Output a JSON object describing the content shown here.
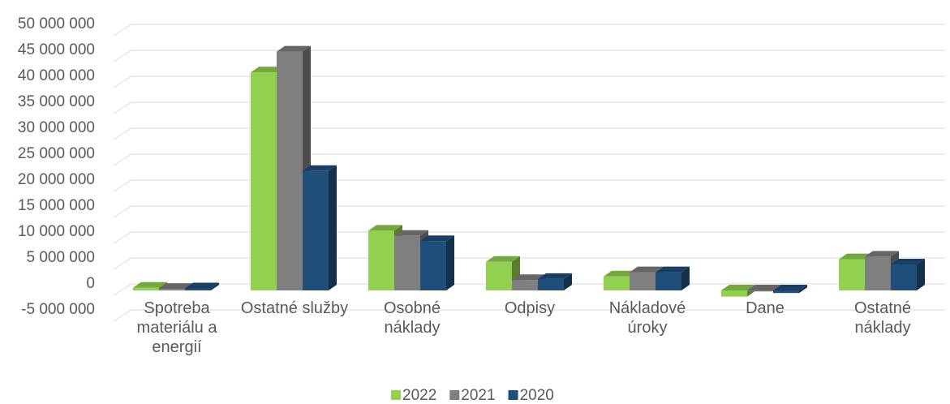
{
  "chart_data": {
    "type": "bar3d",
    "categories": [
      "Spotreba materiálu a energií",
      "Ostatné služby",
      "Osobné náklady",
      "Odpisy",
      "Nákladové úroky",
      "Dane",
      "Ostatné náklady"
    ],
    "series": [
      {
        "name": "2022",
        "color": "#92d050",
        "values": [
          500000,
          42000000,
          11500000,
          5500000,
          2700000,
          -1200000,
          6000000
        ]
      },
      {
        "name": "2021",
        "color": "#7f7f7f",
        "values": [
          300000,
          46000000,
          10500000,
          2000000,
          3500000,
          -200000,
          6500000
        ]
      },
      {
        "name": "2020",
        "color": "#1f4e79",
        "values": [
          400000,
          23000000,
          9500000,
          2200000,
          3500000,
          -500000,
          5000000
        ]
      }
    ],
    "ylim": [
      -5000000,
      50000000
    ],
    "yticks": [
      {
        "value": -5000000,
        "label": "-5 000 000"
      },
      0,
      {
        "value": 5000000,
        "label": "5 000 000"
      },
      {
        "value": 10000000,
        "label": "10 000 000"
      },
      {
        "value": 15000000,
        "label": "15 000 000"
      },
      {
        "value": 20000000,
        "label": "20 000 000"
      },
      {
        "value": 25000000,
        "label": "25 000 000"
      },
      {
        "value": 30000000,
        "label": "30 000 000"
      },
      {
        "value": 35000000,
        "label": "35 000 000"
      },
      {
        "value": 40000000,
        "label": "40 000 000"
      },
      {
        "value": 45000000,
        "label": "45 000 000"
      },
      {
        "value": 50000000,
        "label": "50 000 000"
      }
    ],
    "grid": true,
    "legend": "bottom"
  }
}
